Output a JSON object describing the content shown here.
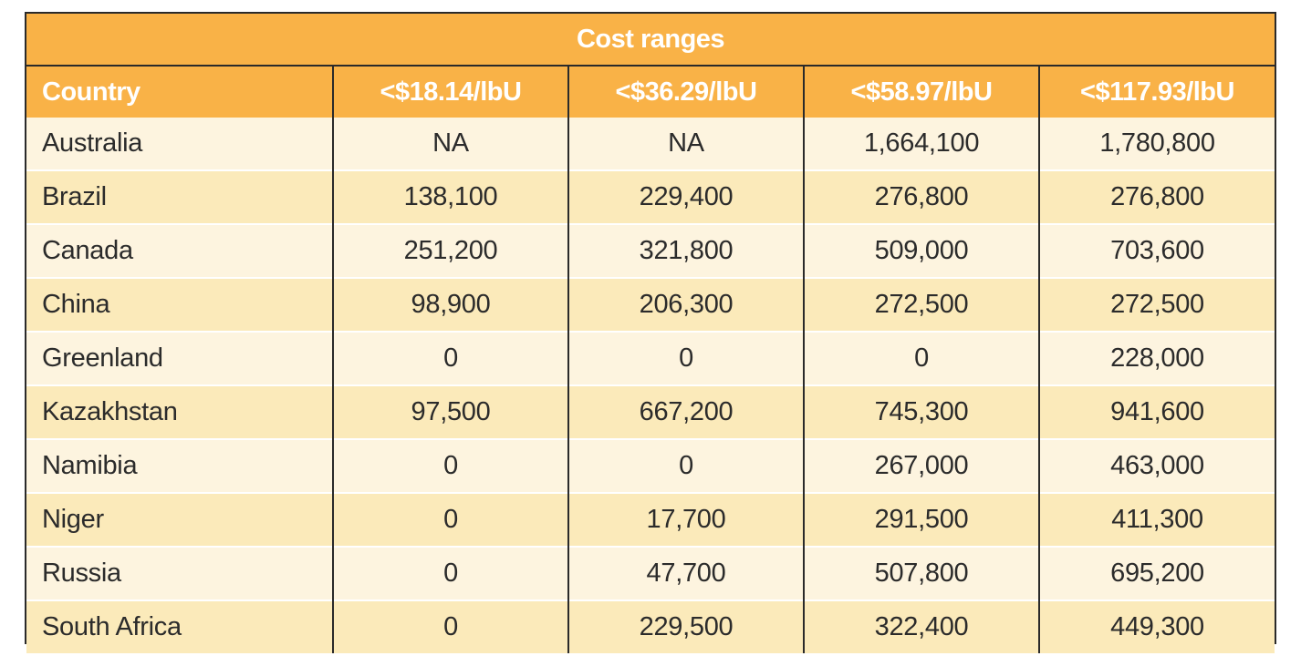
{
  "table": {
    "title": "Cost ranges",
    "columns": [
      "Country",
      "<$18.14/lbU",
      "<$36.29/lbU",
      "<$58.97/lbU",
      "<$117.93/lbU"
    ],
    "rows": [
      [
        "Australia",
        "NA",
        "NA",
        "1,664,100",
        "1,780,800"
      ],
      [
        "Brazil",
        "138,100",
        "229,400",
        "276,800",
        "276,800"
      ],
      [
        "Canada",
        "251,200",
        "321,800",
        "509,000",
        "703,600"
      ],
      [
        "China",
        "98,900",
        "206,300",
        "272,500",
        "272,500"
      ],
      [
        "Greenland",
        "0",
        "0",
        "0",
        "228,000"
      ],
      [
        "Kazakhstan",
        "97,500",
        "667,200",
        "745,300",
        "941,600"
      ],
      [
        "Namibia",
        "0",
        "0",
        "267,000",
        "463,000"
      ],
      [
        "Niger",
        "0",
        "17,700",
        "291,500",
        "411,300"
      ],
      [
        "Russia",
        "0",
        "47,700",
        "507,800",
        "695,200"
      ],
      [
        "South Africa",
        "0",
        "229,500",
        "322,400",
        "449,300"
      ]
    ]
  },
  "colors": {
    "header_bg": "#f9b247",
    "header_text": "#ffffff",
    "row_light": "#fdf4df",
    "row_dark": "#fbeaba",
    "border": "#2a2a2a"
  }
}
